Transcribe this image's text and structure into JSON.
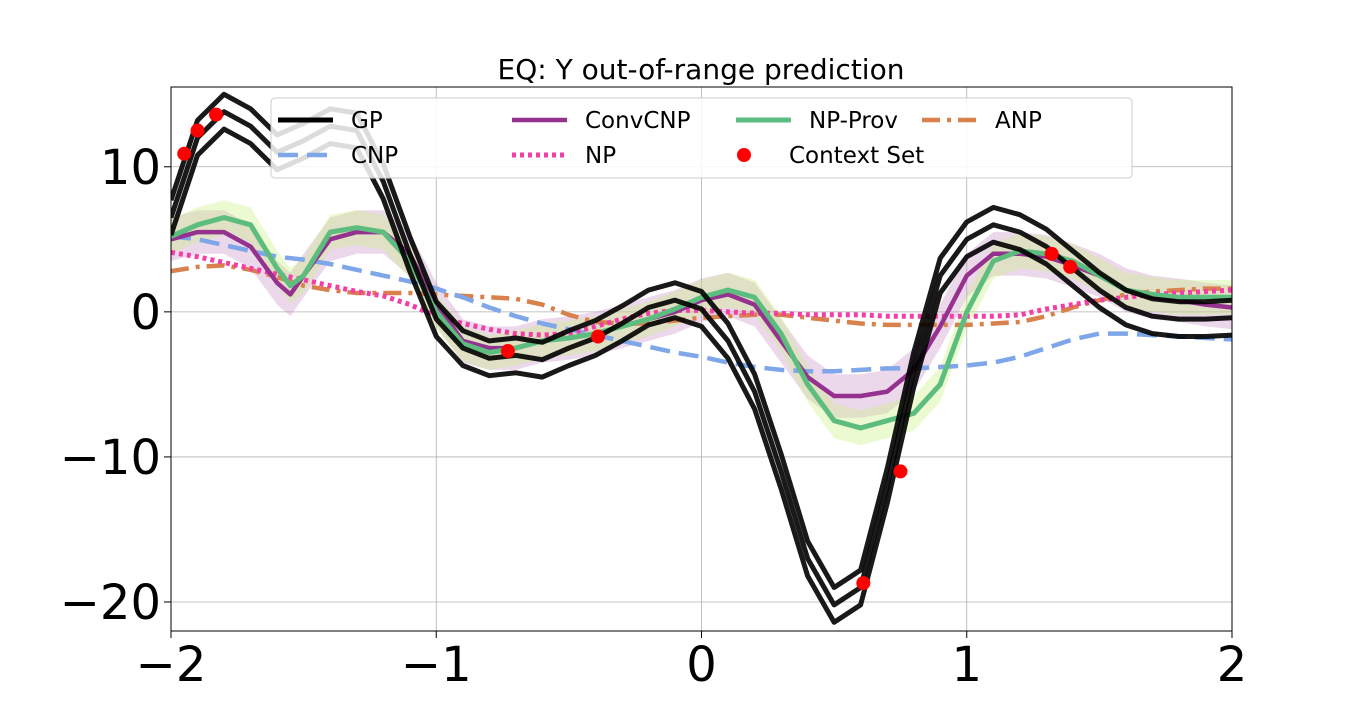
{
  "chart_data": {
    "type": "line",
    "title": "EQ: Y out-of-range prediction",
    "xlabel": "",
    "ylabel": "",
    "xlim": [
      -2,
      2
    ],
    "ylim": [
      -22,
      15.5
    ],
    "x_ticks": [
      -2,
      -1,
      0,
      1,
      2
    ],
    "y_ticks": [
      -20,
      -10,
      0,
      10
    ],
    "x_tick_labels": [
      "−2",
      "−1",
      "0",
      "1",
      "2"
    ],
    "y_tick_labels": [
      "−20",
      "−10",
      "0",
      "10"
    ],
    "grid": true,
    "legend": {
      "placement": "top",
      "columns": 4,
      "entries": [
        {
          "label": "GP",
          "color": "#000000",
          "style": "solid"
        },
        {
          "label": "ConvCNP",
          "color": "#95318f",
          "style": "solid"
        },
        {
          "label": "NP-Prov",
          "color": "#5cbd7e",
          "style": "solid"
        },
        {
          "label": "ANP",
          "color": "#d9814c",
          "style": "dashdot"
        },
        {
          "label": "CNP",
          "color": "#7ea6e8",
          "style": "dashed"
        },
        {
          "label": "NP",
          "color": "#f23fa8",
          "style": "dotted"
        },
        {
          "label": "Context Set",
          "color": "#ff0000",
          "style": "marker"
        }
      ]
    },
    "series": [
      {
        "name": "GP",
        "color": "#000000",
        "x": [
          -2.0,
          -1.9,
          -1.8,
          -1.7,
          -1.6,
          -1.5,
          -1.4,
          -1.3,
          -1.2,
          -1.1,
          -1.0,
          -0.9,
          -0.8,
          -0.7,
          -0.6,
          -0.5,
          -0.4,
          -0.3,
          -0.2,
          -0.1,
          0.0,
          0.1,
          0.2,
          0.3,
          0.4,
          0.5,
          0.6,
          0.7,
          0.8,
          0.9,
          1.0,
          1.1,
          1.2,
          1.3,
          1.4,
          1.5,
          1.6,
          1.7,
          1.8,
          1.9,
          2.0
        ],
        "y": [
          6.5,
          12.0,
          13.8,
          12.8,
          11.0,
          11.8,
          12.8,
          12.5,
          9.0,
          4.0,
          -0.5,
          -2.5,
          -3.2,
          -3.0,
          -3.3,
          -2.5,
          -1.8,
          -0.8,
          0.3,
          0.8,
          0.2,
          -2.0,
          -5.5,
          -11.0,
          -17.0,
          -20.2,
          -19.0,
          -12.0,
          -4.0,
          2.5,
          5.0,
          6.0,
          5.5,
          4.5,
          3.0,
          1.5,
          0.3,
          -0.3,
          -0.5,
          -0.5,
          -0.4
        ],
        "variants_offset": [
          -1.2,
          0,
          1.2
        ]
      },
      {
        "name": "ConvCNP",
        "color": "#95318f",
        "x": [
          -2.0,
          -1.9,
          -1.8,
          -1.7,
          -1.6,
          -1.55,
          -1.5,
          -1.4,
          -1.3,
          -1.2,
          -1.1,
          -1.0,
          -0.9,
          -0.8,
          -0.7,
          -0.6,
          -0.5,
          -0.4,
          -0.3,
          -0.2,
          -0.1,
          0.0,
          0.1,
          0.2,
          0.3,
          0.4,
          0.5,
          0.6,
          0.7,
          0.8,
          0.9,
          1.0,
          1.1,
          1.2,
          1.3,
          1.4,
          1.5,
          1.6,
          1.7,
          1.8,
          1.9,
          2.0
        ],
        "y": [
          5.0,
          5.5,
          5.5,
          4.5,
          2.0,
          1.2,
          2.5,
          5.0,
          5.5,
          5.5,
          4.0,
          0.5,
          -2.0,
          -2.5,
          -2.5,
          -2.0,
          -1.8,
          -1.5,
          -1.0,
          -0.5,
          0.0,
          0.8,
          1.2,
          0.5,
          -2.0,
          -4.5,
          -5.8,
          -5.8,
          -5.5,
          -4.0,
          -1.0,
          2.5,
          4.0,
          4.0,
          3.8,
          3.2,
          2.5,
          1.5,
          1.0,
          0.8,
          0.5,
          0.3
        ],
        "band": 1.5
      },
      {
        "name": "NP-Prov",
        "color": "#5cbd7e",
        "x": [
          -2.0,
          -1.9,
          -1.8,
          -1.7,
          -1.6,
          -1.55,
          -1.5,
          -1.4,
          -1.3,
          -1.2,
          -1.1,
          -1.0,
          -0.9,
          -0.8,
          -0.7,
          -0.6,
          -0.5,
          -0.4,
          -0.3,
          -0.2,
          -0.1,
          0.0,
          0.1,
          0.2,
          0.3,
          0.4,
          0.5,
          0.6,
          0.7,
          0.8,
          0.9,
          1.0,
          1.1,
          1.2,
          1.3,
          1.4,
          1.5,
          1.6,
          1.7,
          1.8,
          1.9,
          2.0
        ],
        "y": [
          5.2,
          6.0,
          6.5,
          6.0,
          3.0,
          1.8,
          2.5,
          5.5,
          5.8,
          5.5,
          3.5,
          0.0,
          -2.2,
          -2.8,
          -2.5,
          -2.0,
          -1.8,
          -1.5,
          -1.0,
          -0.5,
          0.2,
          1.0,
          1.5,
          1.0,
          -1.5,
          -5.0,
          -7.5,
          -8.0,
          -7.5,
          -7.0,
          -5.0,
          0.0,
          3.5,
          4.2,
          4.0,
          3.5,
          2.5,
          1.5,
          1.2,
          1.0,
          1.0,
          1.0
        ],
        "band": 1.2
      },
      {
        "name": "ANP",
        "color": "#d9814c",
        "x": [
          -2.0,
          -1.9,
          -1.8,
          -1.7,
          -1.6,
          -1.5,
          -1.4,
          -1.3,
          -1.2,
          -1.1,
          -1.0,
          -0.9,
          -0.8,
          -0.7,
          -0.6,
          -0.5,
          -0.4,
          -0.3,
          -0.2,
          -0.1,
          0.0,
          0.1,
          0.2,
          0.3,
          0.4,
          0.5,
          0.6,
          0.7,
          0.8,
          0.9,
          1.0,
          1.1,
          1.2,
          1.3,
          1.4,
          1.5,
          1.6,
          1.7,
          1.8,
          1.9,
          2.0
        ],
        "y": [
          2.8,
          3.1,
          3.2,
          2.9,
          2.4,
          1.8,
          1.5,
          1.3,
          1.3,
          1.3,
          1.2,
          1.1,
          1.0,
          0.9,
          0.5,
          -0.2,
          -0.7,
          -0.8,
          -0.8,
          -0.6,
          -0.4,
          -0.3,
          -0.2,
          -0.2,
          -0.4,
          -0.6,
          -0.8,
          -0.9,
          -0.9,
          -0.9,
          -0.9,
          -0.8,
          -0.7,
          -0.3,
          0.3,
          0.8,
          1.2,
          1.4,
          1.5,
          1.6,
          1.6
        ]
      },
      {
        "name": "CNP",
        "color": "#7ea6e8",
        "x": [
          -2.0,
          -1.9,
          -1.8,
          -1.7,
          -1.6,
          -1.5,
          -1.4,
          -1.3,
          -1.2,
          -1.1,
          -1.0,
          -0.9,
          -0.8,
          -0.7,
          -0.6,
          -0.5,
          -0.4,
          -0.3,
          -0.2,
          -0.1,
          0.0,
          0.1,
          0.2,
          0.3,
          0.4,
          0.5,
          0.6,
          0.7,
          0.8,
          0.9,
          1.0,
          1.1,
          1.2,
          1.3,
          1.4,
          1.5,
          1.6,
          1.7,
          1.8,
          1.9,
          2.0
        ],
        "y": [
          5.2,
          5.0,
          4.6,
          4.2,
          3.8,
          3.6,
          3.3,
          2.9,
          2.5,
          2.1,
          1.6,
          1.0,
          0.3,
          -0.3,
          -0.8,
          -1.2,
          -1.6,
          -2.0,
          -2.4,
          -2.8,
          -3.1,
          -3.5,
          -3.8,
          -4.0,
          -4.1,
          -4.1,
          -4.0,
          -3.9,
          -3.9,
          -3.8,
          -3.7,
          -3.5,
          -3.1,
          -2.5,
          -1.9,
          -1.5,
          -1.5,
          -1.6,
          -1.7,
          -1.8,
          -1.9
        ]
      },
      {
        "name": "NP",
        "color": "#f23fa8",
        "x": [
          -2.0,
          -1.9,
          -1.8,
          -1.7,
          -1.6,
          -1.5,
          -1.4,
          -1.3,
          -1.2,
          -1.1,
          -1.0,
          -0.9,
          -0.8,
          -0.7,
          -0.6,
          -0.5,
          -0.4,
          -0.3,
          -0.2,
          -0.1,
          0.0,
          0.1,
          0.2,
          0.3,
          0.4,
          0.5,
          0.6,
          0.7,
          0.8,
          0.9,
          1.0,
          1.1,
          1.2,
          1.3,
          1.4,
          1.5,
          1.6,
          1.7,
          1.8,
          1.9,
          2.0
        ],
        "y": [
          4.1,
          3.8,
          3.4,
          3.0,
          2.6,
          2.2,
          1.8,
          1.4,
          1.1,
          0.5,
          -0.3,
          -0.8,
          -1.2,
          -1.5,
          -1.6,
          -1.5,
          -1.0,
          -0.5,
          -0.1,
          0.1,
          0.1,
          0.0,
          -0.1,
          -0.1,
          -0.2,
          -0.2,
          -0.2,
          -0.3,
          -0.3,
          -0.3,
          -0.3,
          -0.3,
          -0.2,
          0.2,
          0.5,
          0.8,
          1.0,
          1.2,
          1.3,
          1.4,
          1.5
        ]
      }
    ],
    "context_set": {
      "name": "Context Set",
      "x": [
        -1.95,
        -1.9,
        -1.83,
        -0.73,
        -0.39,
        0.61,
        0.75,
        1.32,
        1.39
      ],
      "y": [
        10.9,
        12.5,
        13.6,
        -2.7,
        -1.7,
        -18.7,
        -11.0,
        4.0,
        3.1
      ]
    }
  }
}
